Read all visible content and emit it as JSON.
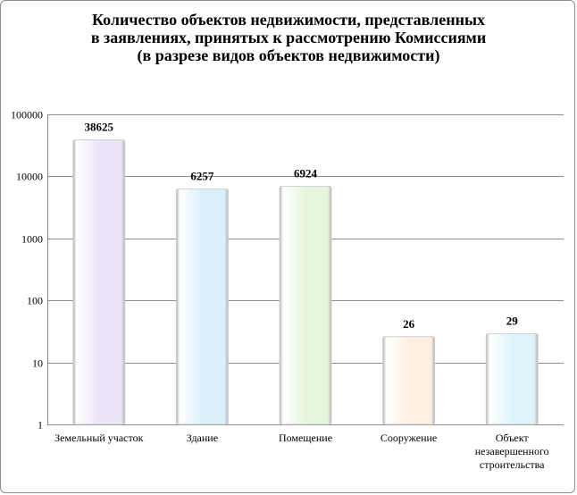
{
  "chart_data": {
    "type": "bar",
    "title_lines": [
      "Количество объектов недвижимости, представленных",
      "в заявлениях, принятых к рассмотрению Комиссиями",
      "(в разрезе видов объектов недвижимости)"
    ],
    "categories": [
      [
        "Земельный участок"
      ],
      [
        "Здание"
      ],
      [
        "Помещение"
      ],
      [
        "Сооружение"
      ],
      [
        "Объект",
        "незавершенного",
        "строительства"
      ]
    ],
    "values": [
      38625,
      6257,
      6924,
      26,
      29
    ],
    "data_labels": [
      "38625",
      "6257",
      "6924",
      "26",
      "29"
    ],
    "y_scale": "log",
    "ylim": [
      1,
      100000
    ],
    "y_ticks": [
      1,
      10,
      100,
      1000,
      10000,
      100000
    ],
    "y_tick_labels": [
      "1",
      "10",
      "100",
      "1000",
      "10000",
      "100000"
    ],
    "grid": true,
    "legend": "none",
    "bar_colors": [
      "#ece4f7",
      "#d9f0fb",
      "#e6f5de",
      "#fdf0e2",
      "#dff3fb"
    ]
  }
}
